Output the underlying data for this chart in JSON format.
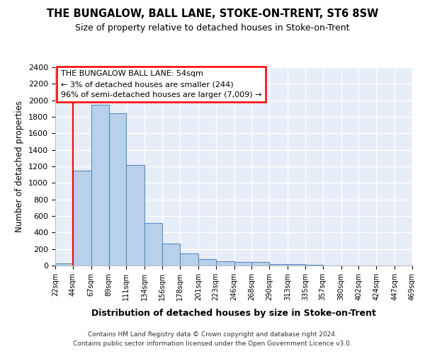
{
  "title": "THE BUNGALOW, BALL LANE, STOKE-ON-TRENT, ST6 8SW",
  "subtitle": "Size of property relative to detached houses in Stoke-on-Trent",
  "xlabel": "Distribution of detached houses by size in Stoke-on-Trent",
  "ylabel": "Number of detached properties",
  "footer_line1": "Contains HM Land Registry data © Crown copyright and database right 2024.",
  "footer_line2": "Contains public sector information licensed under the Open Government Licence v3.0.",
  "annotation_line1": "THE BUNGALOW BALL LANE: 54sqm",
  "annotation_line2": "← 3% of detached houses are smaller (244)",
  "annotation_line3": "96% of semi-detached houses are larger (7,009) →",
  "bar_color": "#b8d0ea",
  "bar_edge_color": "#5a8fc0",
  "background_color": "#e8eef8",
  "grid_color": "#ffffff",
  "red_line_x": 44,
  "bin_edges": [
    22,
    44,
    67,
    89,
    111,
    134,
    156,
    178,
    201,
    223,
    246,
    268,
    290,
    313,
    335,
    357,
    380,
    402,
    424,
    447,
    469
  ],
  "bin_labels": [
    "22sqm",
    "44sqm",
    "67sqm",
    "89sqm",
    "111sqm",
    "134sqm",
    "156sqm",
    "178sqm",
    "201sqm",
    "223sqm",
    "246sqm",
    "268sqm",
    "290sqm",
    "313sqm",
    "335sqm",
    "357sqm",
    "380sqm",
    "402sqm",
    "424sqm",
    "447sqm",
    "469sqm"
  ],
  "values": [
    30,
    1150,
    1950,
    1840,
    1220,
    515,
    265,
    150,
    80,
    50,
    45,
    40,
    20,
    15,
    10,
    0,
    0,
    0,
    0,
    0
  ],
  "ylim": [
    0,
    2400
  ],
  "yticks": [
    0,
    200,
    400,
    600,
    800,
    1000,
    1200,
    1400,
    1600,
    1800,
    2000,
    2200,
    2400
  ]
}
